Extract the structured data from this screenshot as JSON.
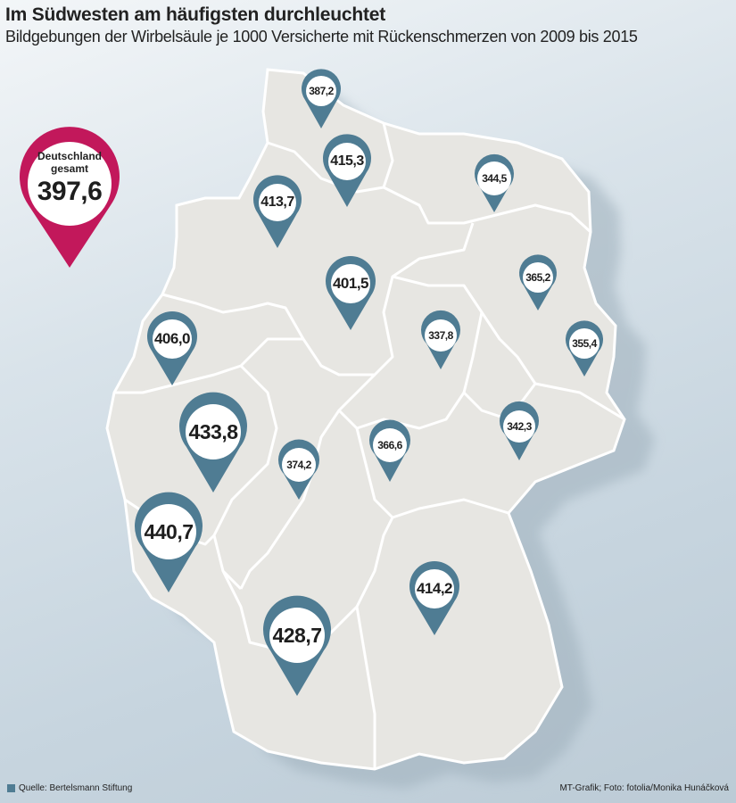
{
  "header": {
    "title": "Im Südwesten am häufigsten durchleuchtet",
    "subtitle": "Bildgebungen der Wirbelsäule je 1000 Versicherte mit Rückenschmerzen von 2009 bis 2015"
  },
  "national": {
    "label_line1": "Deutschland",
    "label_line2": "gesamt",
    "value": "397,6",
    "color": "#c2185b"
  },
  "colors": {
    "pin": "#4f7c93",
    "land": "#e6e5e1",
    "border": "#ffffff",
    "national_pin": "#c2185b"
  },
  "regions": [
    {
      "name": "schleswig-holstein",
      "value": "387,2"
    },
    {
      "name": "hamburg",
      "value": "415,3"
    },
    {
      "name": "bremen",
      "value": "413,7"
    },
    {
      "name": "mecklenburg-vorpommern",
      "value": "344,5"
    },
    {
      "name": "niedersachsen",
      "value": "401,5"
    },
    {
      "name": "berlin",
      "value": "365,2"
    },
    {
      "name": "sachsen-anhalt",
      "value": "337,8"
    },
    {
      "name": "brandenburg",
      "value": "355,4"
    },
    {
      "name": "nordrhein-westfalen",
      "value": "406,0"
    },
    {
      "name": "sachsen",
      "value": "342,3"
    },
    {
      "name": "thueringen",
      "value": "366,6"
    },
    {
      "name": "hessen",
      "value": "374,2"
    },
    {
      "name": "rheinland-pfalz",
      "value": "433,8"
    },
    {
      "name": "saarland",
      "value": "440,7"
    },
    {
      "name": "bayern",
      "value": "414,2"
    },
    {
      "name": "baden-wuerttemberg",
      "value": "428,7"
    }
  ],
  "footer": {
    "source": "Quelle: Bertelsmann Stiftung",
    "credit": "MT-Grafik; Foto: fotolia/Monika Hunáčková"
  }
}
